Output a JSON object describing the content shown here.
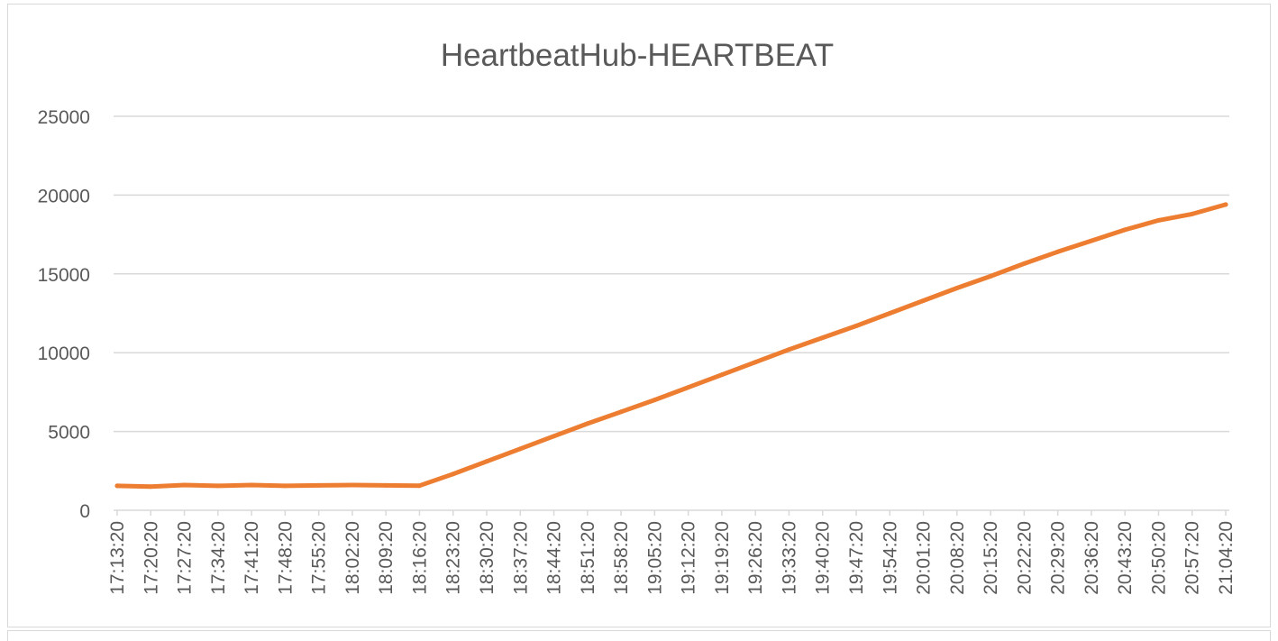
{
  "chart_data": {
    "type": "line",
    "title": "HeartbeatHub-HEARTBEAT",
    "xlabel": "",
    "ylabel": "",
    "ylim": [
      0,
      25000
    ],
    "yticks": [
      "0",
      "5000",
      "10000",
      "15000",
      "20000",
      "25000"
    ],
    "grid": true,
    "legend": "none",
    "line_color": "#ED7D31",
    "x": [
      "17:13:20",
      "17:20:20",
      "17:27:20",
      "17:34:20",
      "17:41:20",
      "17:48:20",
      "17:55:20",
      "18:02:20",
      "18:09:20",
      "18:16:20",
      "18:23:20",
      "18:30:20",
      "18:37:20",
      "18:44:20",
      "18:51:20",
      "18:58:20",
      "19:05:20",
      "19:12:20",
      "19:19:20",
      "19:26:20",
      "19:33:20",
      "19:40:20",
      "19:47:20",
      "19:54:20",
      "20:01:20",
      "20:08:20",
      "20:15:20",
      "20:22:20",
      "20:29:20",
      "20:36:20",
      "20:43:20",
      "20:50:20",
      "20:57:20",
      "21:04:20"
    ],
    "series": [
      {
        "values": [
          1550,
          1500,
          1600,
          1550,
          1600,
          1550,
          1580,
          1600,
          1580,
          1560,
          2300,
          3100,
          3900,
          4700,
          5500,
          6250,
          7000,
          7800,
          8600,
          9400,
          10200,
          10950,
          11700,
          12500,
          13300,
          14100,
          14850,
          15650,
          16400,
          17100,
          17800,
          18400,
          18800,
          19400
        ]
      }
    ]
  }
}
